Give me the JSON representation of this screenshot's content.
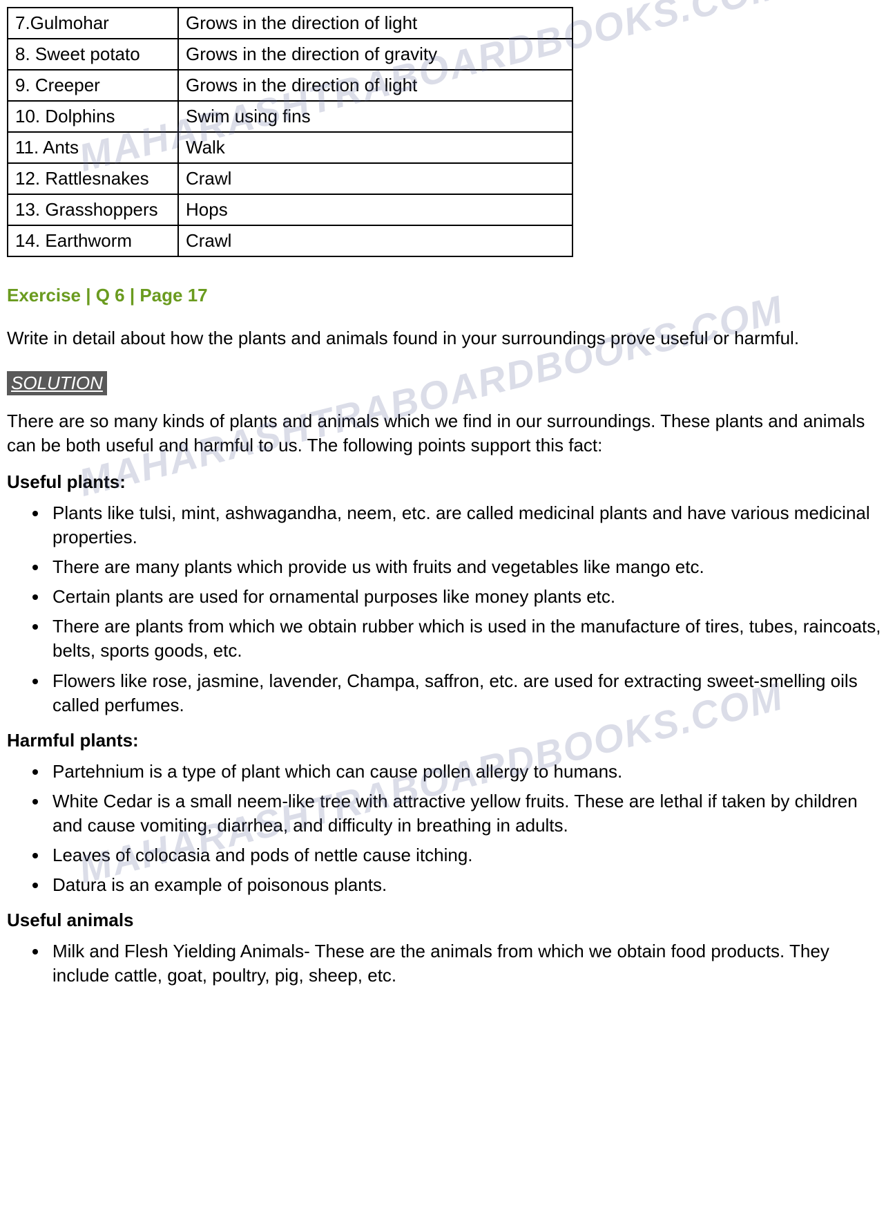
{
  "watermark_text": "MAHARASHTRABOARDBOOKS.COM",
  "table": {
    "rows": [
      [
        "7.Gulmohar",
        "Grows in the direction of light"
      ],
      [
        "8. Sweet potato",
        "Grows in the direction of gravity"
      ],
      [
        "9. Creeper",
        "Grows in the direction of light"
      ],
      [
        "10. Dolphins",
        "Swim using fins"
      ],
      [
        "11. Ants",
        "Walk"
      ],
      [
        "12. Rattlesnakes",
        "Crawl"
      ],
      [
        "13. Grasshoppers",
        "Hops"
      ],
      [
        "14. Earthworm",
        "Crawl"
      ]
    ]
  },
  "exercise_heading": "Exercise | Q 6 | Page 17",
  "question": "Write in detail about how the plants and animals found in your surroundings prove useful or harmful.",
  "solution_label": "SOLUTION",
  "intro": "There are so many kinds of plants and animals which we find in our surroundings. These plants and animals can be both useful and harmful to us. The following points support this fact:",
  "sections": [
    {
      "title": "Useful plants:",
      "items": [
        "Plants like tulsi, mint, ashwagandha, neem, etc. are called medicinal plants and have various medicinal properties.",
        "There are many plants which provide us with fruits and vegetables like mango etc.",
        "Certain plants are used for ornamental purposes like money plants etc.",
        "There are plants from which we obtain rubber which is used in the manufacture of tires, tubes, raincoats, belts, sports goods, etc.",
        "Flowers like rose, jasmine, lavender, Champa, saffron, etc. are used for extracting sweet-smelling oils called perfumes."
      ]
    },
    {
      "title": "Harmful plants:",
      "items": [
        "Partehnium is a type of plant which can cause pollen allergy to humans.",
        "White Cedar is a small neem-like tree with attractive  yellow fruits. These are lethal if taken by children and cause vomiting, diarrhea, and difficulty in breathing in adults.",
        "Leaves of colocasia and pods of nettle cause itching.",
        "Datura is an example of poisonous plants."
      ]
    },
    {
      "title": "Useful animals",
      "items": [
        "Milk and Flesh Yielding Animals- These are the animals from which we obtain food products. They include cattle, goat, poultry, pig, sheep, etc."
      ]
    }
  ]
}
